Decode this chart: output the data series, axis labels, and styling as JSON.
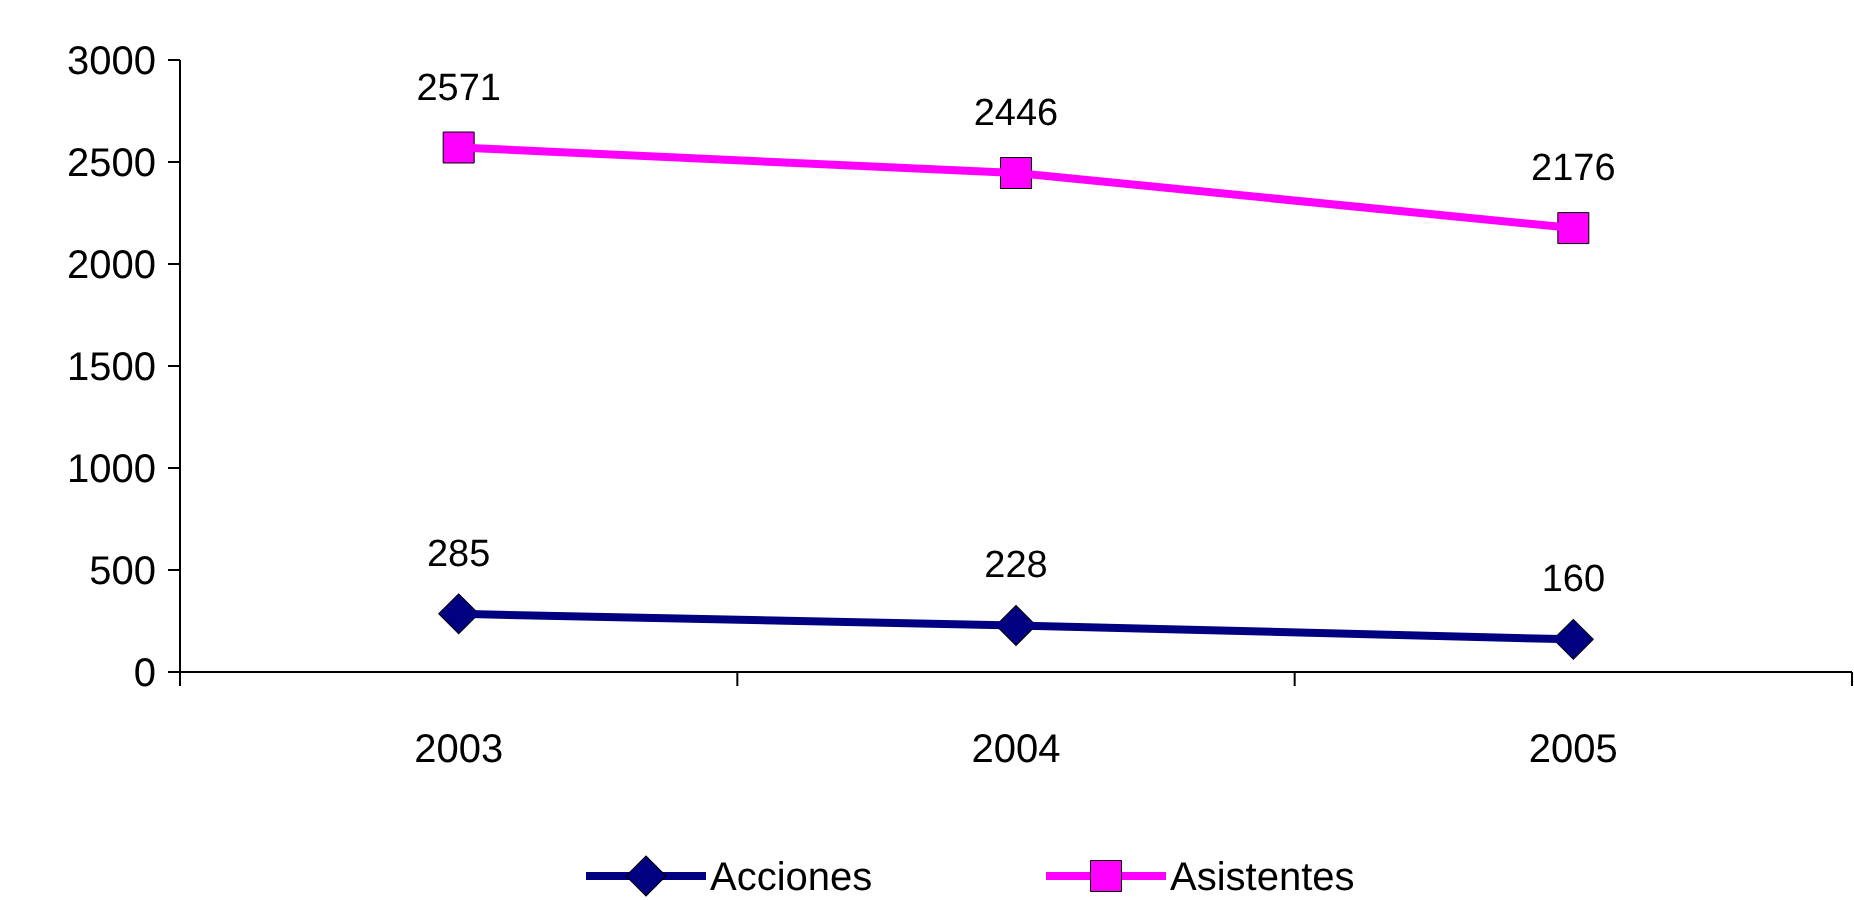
{
  "chart_data": {
    "type": "line",
    "categories": [
      "2003",
      "2004",
      "2005"
    ],
    "series": [
      {
        "name": "Acciones",
        "color": "#000080",
        "values": [
          285,
          228,
          160
        ],
        "marker": "diamond"
      },
      {
        "name": "Asistentes",
        "color": "#ff00ff",
        "values": [
          2571,
          2446,
          2176
        ],
        "marker": "square"
      }
    ],
    "ylim": [
      0,
      3000
    ],
    "yticks": [
      0,
      500,
      1000,
      1500,
      2000,
      2500,
      3000
    ],
    "data_labels": true,
    "grid": false,
    "legend": "bottom"
  }
}
